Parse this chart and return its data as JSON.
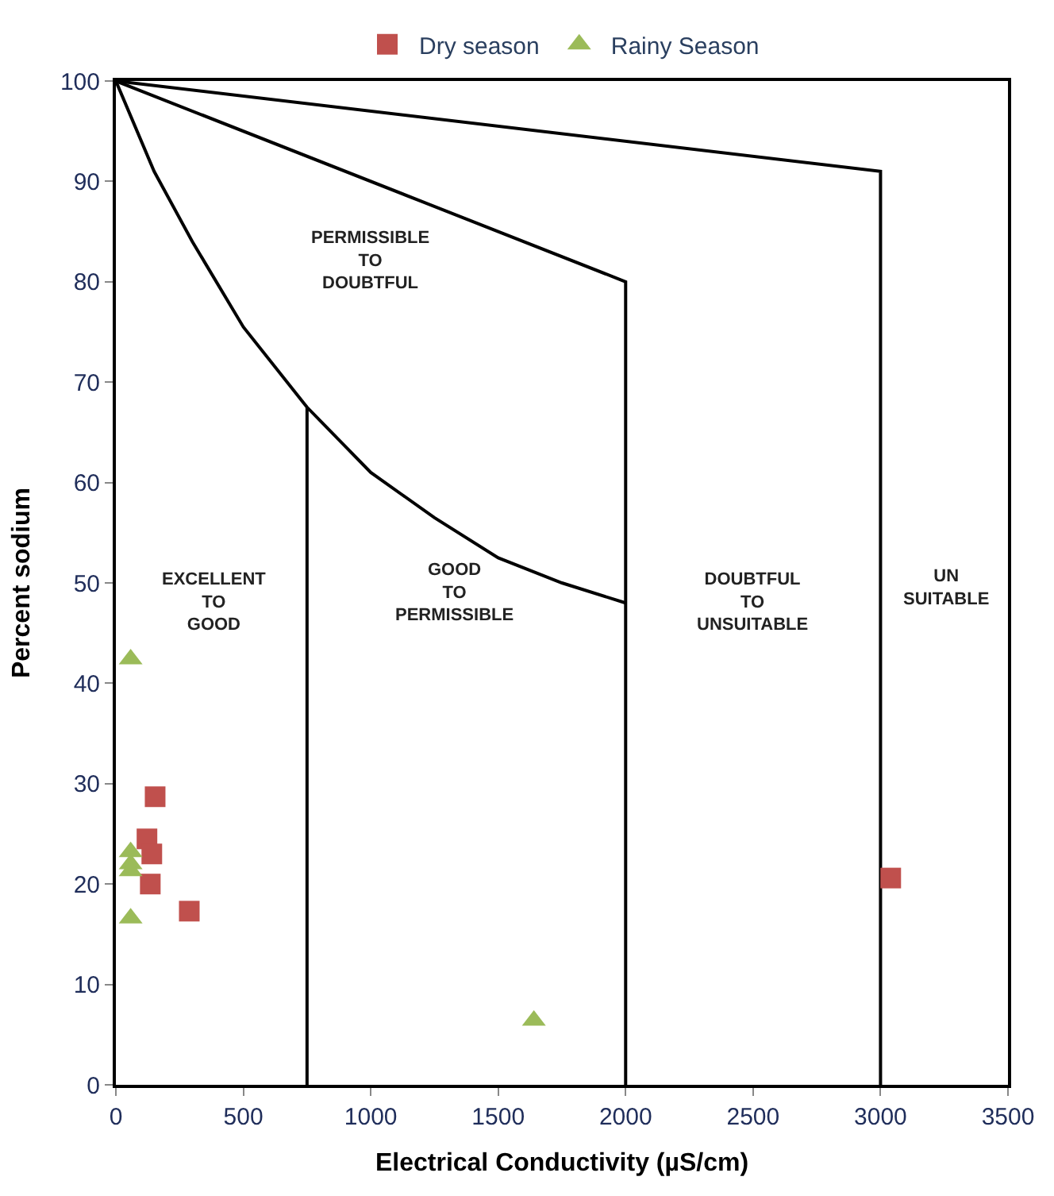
{
  "chart_data": {
    "type": "scatter",
    "xlabel": "Electrical Conductivity (µS/cm)",
    "ylabel": "Percent sodium",
    "xlim": [
      0,
      3500
    ],
    "xticks": [
      0,
      500,
      1000,
      1500,
      2000,
      2500,
      3000,
      3500
    ],
    "ylim": [
      0,
      100
    ],
    "yticks": [
      0,
      10,
      20,
      30,
      40,
      50,
      60,
      70,
      80,
      90,
      100
    ],
    "legend": "top",
    "series": [
      {
        "type": "line",
        "color": "#000000",
        "marker": "none",
        "line_style": "solid",
        "x": [
          0,
          2000,
          2000
        ],
        "values": [
          100,
          80,
          0
        ]
      },
      {
        "type": "line",
        "color": "#000000",
        "marker": "none",
        "line_style": "solid",
        "x": [
          0,
          3000,
          3000
        ],
        "values": [
          100,
          91,
          0
        ]
      },
      {
        "type": "line",
        "color": "#000000",
        "marker": "none",
        "line_style": "solid",
        "x": [
          0,
          150,
          300,
          500,
          750,
          1000,
          1250,
          1500,
          1750,
          2000
        ],
        "values": [
          100,
          91,
          84,
          75.5,
          67.5,
          61,
          56.5,
          52.5,
          50,
          48
        ]
      },
      {
        "type": "line",
        "color": "#000000",
        "marker": "none",
        "line_style": "solid",
        "x": [
          750,
          750
        ],
        "values": [
          67.5,
          0
        ]
      },
      {
        "name": "Dry season",
        "color": "#c0504d",
        "marker": "square",
        "x": [
          154,
          122,
          141,
          135,
          288,
          3040
        ],
        "values": [
          28.7,
          24.5,
          23,
          20,
          17.3,
          20.6
        ]
      },
      {
        "name": "Rainy Season",
        "color": "#9bbb59",
        "marker": "triangle",
        "x": [
          58,
          58,
          58,
          58,
          58,
          1640
        ],
        "values": [
          42.4,
          23.2,
          22,
          21.3,
          16.6,
          6.4
        ]
      }
    ],
    "annotations": [
      "PERMISSIBLE\nTO\nDOUBTFUL",
      "EXCELLENT\nTO\nGOOD",
      "GOOD\nTO\nPERMISSIBLE",
      "DOUBTFUL\nTO\nUNSUITABLE",
      "UN\nSUITABLE"
    ]
  }
}
